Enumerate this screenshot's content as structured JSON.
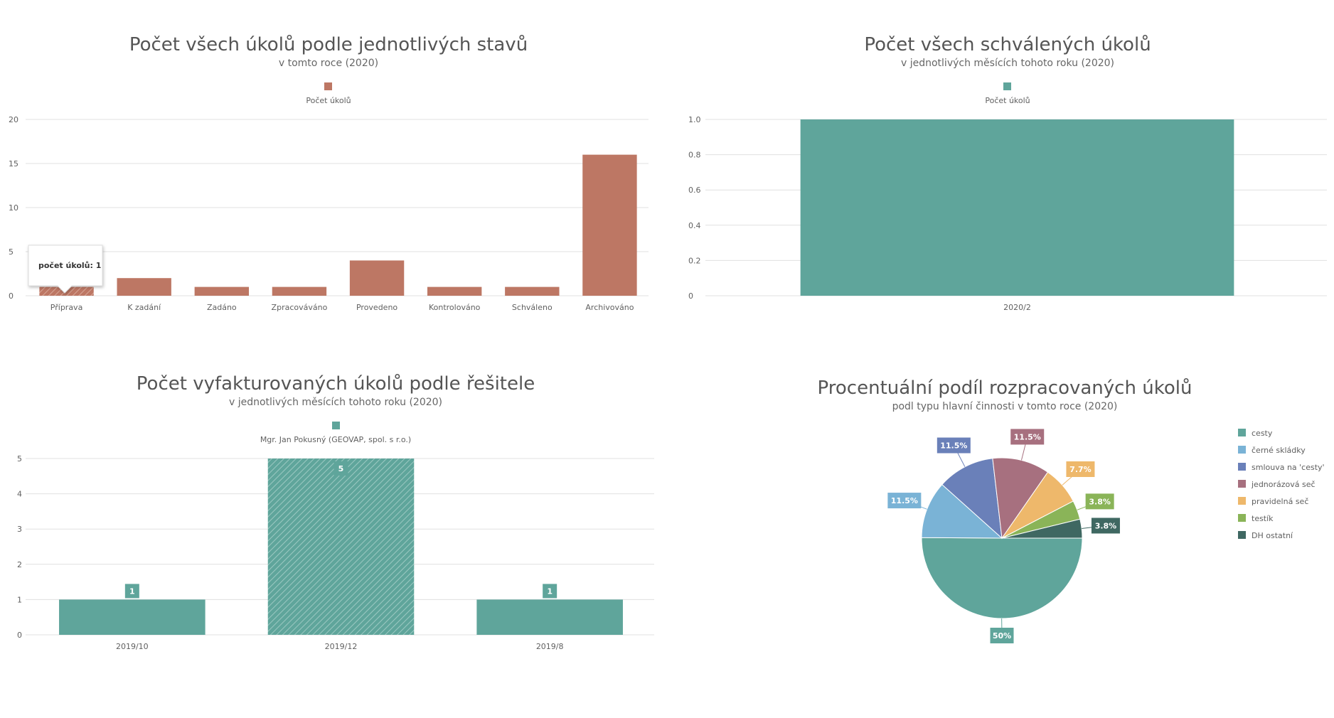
{
  "colors": {
    "terracotta": "#bd7764",
    "teal": "#5fa59b",
    "grid": "#e0e0e0",
    "axis_text": "#606060",
    "title_text": "#555555"
  },
  "chart_data": [
    {
      "type": "bar",
      "title": "Počet všech úkolů podle jednotlivých stavů",
      "subtitle": "v tomto roce (2020)",
      "legend": [
        "Počet úkolů"
      ],
      "legend_placement": "top-center",
      "categories": [
        "Příprava",
        "K zadání",
        "Zadáno",
        "Zpracováváno",
        "Provedeno",
        "Kontrolováno",
        "Schváleno",
        "Archivováno"
      ],
      "series": [
        {
          "name": "Počet úkolů",
          "values": [
            1,
            2,
            1,
            1,
            4,
            1,
            1,
            16
          ]
        }
      ],
      "ylim": [
        0,
        20
      ],
      "yticks": [
        "0",
        "5",
        "10",
        "15",
        "20"
      ],
      "grid": true,
      "hovered_index": 0,
      "tooltip": "počet úkolů: 1"
    },
    {
      "type": "bar",
      "title": "Počet všech schválených úkolů",
      "subtitle": "v jednotlivých měsících tohoto roku (2020)",
      "legend": [
        "Počet úkolů"
      ],
      "legend_placement": "top-center",
      "categories": [
        "2020/2"
      ],
      "series": [
        {
          "name": "Počet úkolů",
          "values": [
            1
          ]
        }
      ],
      "ylim": [
        0,
        1
      ],
      "yticks": [
        "0",
        "0.2",
        "0.4",
        "0.6",
        "0.8",
        "1.0"
      ],
      "grid": true
    },
    {
      "type": "bar",
      "title": "Počet vyfakturovaných úkolů podle řešitele",
      "subtitle": "v jednotlivých měsících tohoto roku (2020)",
      "legend": [
        "Mgr. Jan Pokusný (GEOVAP, spol. s r.o.)"
      ],
      "legend_placement": "top-center",
      "categories": [
        "2019/10",
        "2019/12",
        "2019/8"
      ],
      "series": [
        {
          "name": "Mgr. Jan Pokusný (GEOVAP, spol. s r.o.)",
          "values": [
            1,
            5,
            1
          ]
        }
      ],
      "data_labels": [
        "1",
        "5",
        "1"
      ],
      "ylim": [
        0,
        5
      ],
      "yticks": [
        "0",
        "1",
        "2",
        "3",
        "4",
        "5"
      ],
      "grid": true,
      "hovered_index": 1
    },
    {
      "type": "pie",
      "title": "Procentuální podíl rozpracovaných úkolů",
      "subtitle": "podl typu hlavní činnosti v tomto roce (2020)",
      "legend_placement": "right",
      "slices": [
        {
          "label": "cesty",
          "value": 50,
          "display": "50%",
          "color": "#5fa59b"
        },
        {
          "label": "černé skládky",
          "value": 11.5,
          "display": "11.5%",
          "color": "#7ab3d6"
        },
        {
          "label": "smlouva na 'cesty'",
          "value": 11.5,
          "display": "11.5%",
          "color": "#6a80b9"
        },
        {
          "label": " jednorázová seč",
          "value": 11.5,
          "display": "11.5%",
          "color": "#a7707f"
        },
        {
          "label": "pravidelná seč",
          "value": 7.7,
          "display": "7.7%",
          "color": "#eeb86b"
        },
        {
          "label": "testík",
          "value": 3.8,
          "display": "3.8%",
          "color": "#8ab458"
        },
        {
          "label": "DH ostatní",
          "value": 3.8,
          "display": "3.8%",
          "color": "#3f6862"
        }
      ]
    }
  ]
}
